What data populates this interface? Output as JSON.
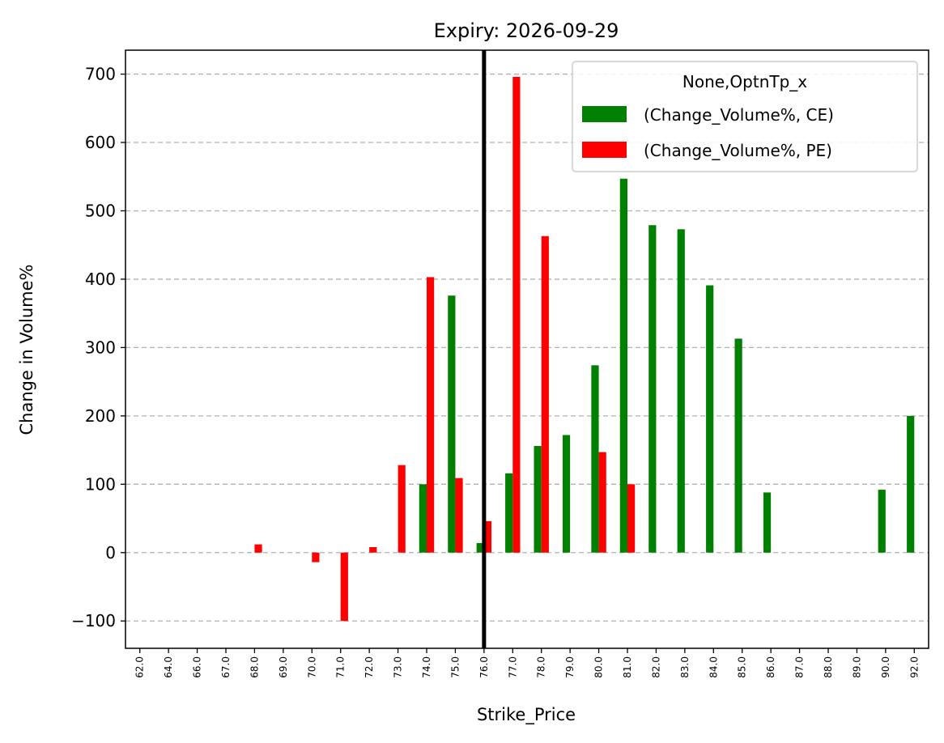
{
  "chart_data": {
    "type": "bar",
    "title": "Expiry: 2026-09-29",
    "xlabel": "Strike_Price",
    "ylabel": "Change in Volume%",
    "ylim": [
      -140,
      735
    ],
    "yticks": [
      -100,
      0,
      100,
      200,
      300,
      400,
      500,
      600,
      700
    ],
    "ytick_labels": [
      "−100",
      "0",
      "100",
      "200",
      "300",
      "400",
      "500",
      "600",
      "700"
    ],
    "grid": "horizontal dashed",
    "legend_position": "top-right",
    "legend_title": "None,OptnTp_x",
    "reference_line": {
      "x_category": "76.0",
      "color": "#000000"
    },
    "categories": [
      "62.0",
      "64.0",
      "66.0",
      "67.0",
      "68.0",
      "69.0",
      "70.0",
      "71.0",
      "72.0",
      "73.0",
      "74.0",
      "75.0",
      "76.0",
      "77.0",
      "78.0",
      "79.0",
      "80.0",
      "81.0",
      "82.0",
      "83.0",
      "84.0",
      "85.0",
      "86.0",
      "87.0",
      "88.0",
      "89.0",
      "90.0",
      "92.0"
    ],
    "series": [
      {
        "name": "(Change_Volume%, CE)",
        "color": "#008000",
        "values": [
          0,
          0,
          0,
          0,
          0,
          0,
          0,
          0,
          0,
          0,
          100,
          376,
          14,
          116,
          156,
          172,
          274,
          547,
          479,
          473,
          391,
          313,
          88,
          0,
          0,
          0,
          92,
          200
        ]
      },
      {
        "name": "(Change_Volume%, PE)",
        "color": "#ff0000",
        "values": [
          0,
          0,
          0,
          0,
          12,
          0,
          -14,
          -100,
          8,
          128,
          403,
          109,
          46,
          696,
          463,
          0,
          147,
          100,
          0,
          0,
          0,
          0,
          0,
          0,
          0,
          0,
          0,
          0
        ]
      }
    ]
  }
}
